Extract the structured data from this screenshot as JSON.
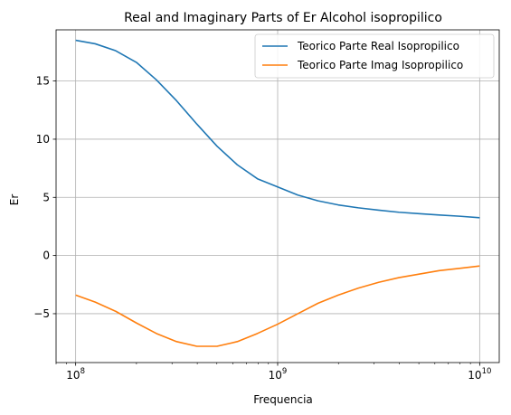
{
  "chart_data": {
    "type": "line",
    "title": "Real and Imaginary Parts of Er Alcohol isopropilico",
    "xlabel": "Frequencia",
    "ylabel": "Er",
    "xscale": "log",
    "xlim": [
      80000000,
      12500000000
    ],
    "ylim": [
      -9.2,
      19.4
    ],
    "x_ticks": [
      {
        "value": 100000000,
        "base": "10",
        "exp": "8"
      },
      {
        "value": 1000000000,
        "base": "10",
        "exp": "9"
      },
      {
        "value": 10000000000,
        "base": "10",
        "exp": "10"
      }
    ],
    "y_ticks": [
      -5,
      0,
      5,
      10,
      15
    ],
    "grid": true,
    "legend_position": "top-right",
    "series": [
      {
        "name": "Teorico Parte Real Isopropilico",
        "color": "#1f77b4",
        "x": [
          100000000,
          125000000,
          158000000,
          200000000,
          251000000,
          316000000,
          398000000,
          501000000,
          631000000,
          794000000,
          1000000000,
          1259000000,
          1585000000,
          1995000000,
          2512000000,
          3162000000,
          3981000000,
          5012000000,
          6310000000,
          7943000000,
          10000000000
        ],
        "y": [
          18.5,
          18.2,
          17.6,
          16.6,
          15.1,
          13.3,
          11.3,
          9.4,
          7.8,
          6.6,
          5.9,
          5.2,
          4.7,
          4.35,
          4.1,
          3.9,
          3.72,
          3.6,
          3.48,
          3.38,
          3.25
        ]
      },
      {
        "name": "Teorico Parte Imag Isopropilico",
        "color": "#ff7f0e",
        "x": [
          100000000,
          125000000,
          158000000,
          200000000,
          251000000,
          316000000,
          398000000,
          501000000,
          631000000,
          794000000,
          1000000000,
          1259000000,
          1585000000,
          1995000000,
          2512000000,
          3162000000,
          3981000000,
          5012000000,
          6310000000,
          7943000000,
          10000000000
        ],
        "y": [
          -3.4,
          -4.0,
          -4.8,
          -5.8,
          -6.7,
          -7.4,
          -7.8,
          -7.8,
          -7.4,
          -6.7,
          -5.9,
          -5.0,
          -4.1,
          -3.4,
          -2.8,
          -2.3,
          -1.9,
          -1.6,
          -1.3,
          -1.1,
          -0.9
        ]
      }
    ]
  }
}
